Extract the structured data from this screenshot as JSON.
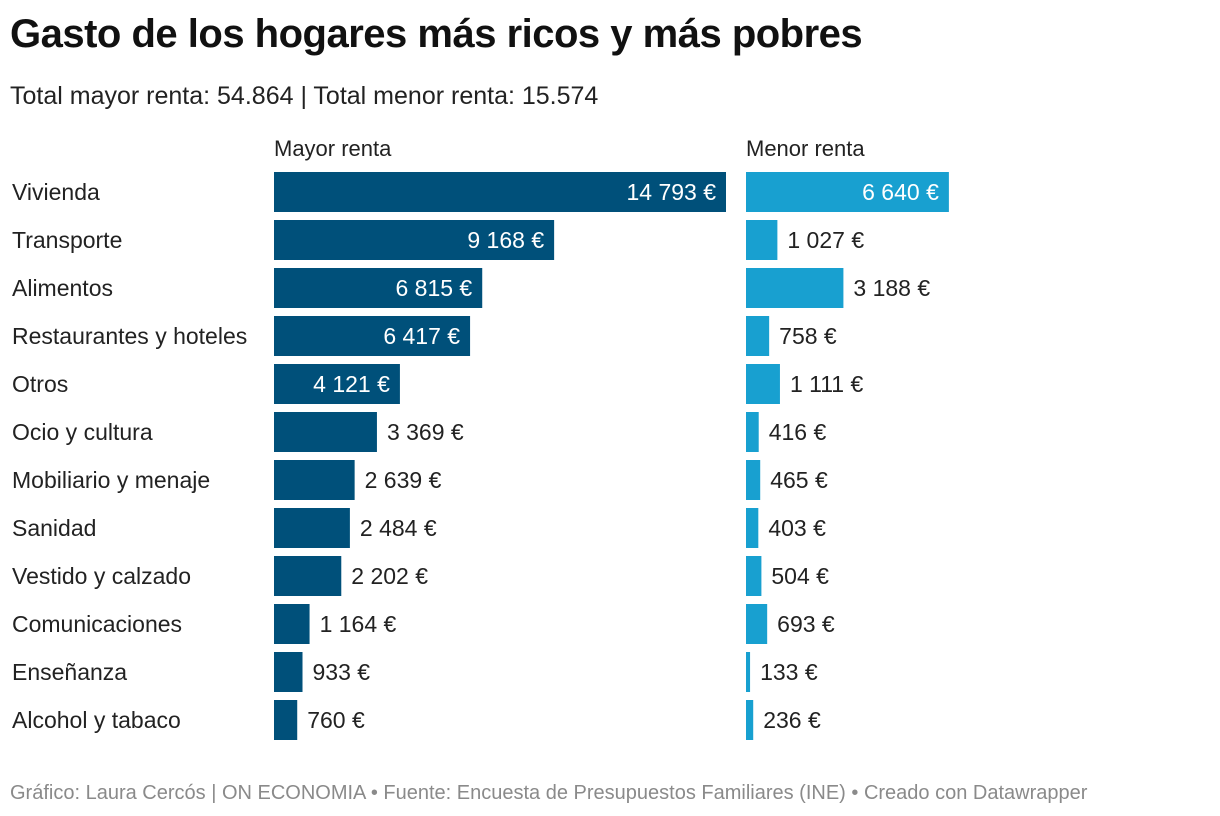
{
  "header": {
    "title": "Gasto de los hogares más ricos y más pobres",
    "subtitle": "Total mayor renta: 54.864 | Total menor renta: 15.574"
  },
  "footer": {
    "credits": "Gráfico: Laura Cercós | ON ECONOMIA • Fuente: Encuesta de Presupuestos Familiares (INE) • Creado con Datawrapper"
  },
  "colors": {
    "mayor": "#00507a",
    "menor": "#18a0d0"
  },
  "chart_data": {
    "type": "bar",
    "orientation": "horizontal",
    "unit": "€",
    "categories": [
      "Vivienda",
      "Transporte",
      "Alimentos",
      "Restaurantes y hoteles",
      "Otros",
      "Ocio y cultura",
      "Mobiliario y menaje",
      "Sanidad",
      "Vestido y calzado",
      "Comunicaciones",
      "Enseñanza",
      "Alcohol y tabaco"
    ],
    "series": [
      {
        "name": "Mayor renta",
        "values": [
          14793,
          9168,
          6815,
          6417,
          4121,
          3369,
          2639,
          2484,
          2202,
          1164,
          933,
          760
        ],
        "labels": [
          "14 793 €",
          "9 168 €",
          "6 815 €",
          "6 417 €",
          "4 121 €",
          "3 369 €",
          "2 639 €",
          "2 484 €",
          "2 202 €",
          "1 164 €",
          "933 €",
          "760 €"
        ]
      },
      {
        "name": "Menor renta",
        "values": [
          6640,
          1027,
          3188,
          758,
          1111,
          416,
          465,
          403,
          504,
          693,
          133,
          236
        ],
        "labels": [
          "6 640 €",
          "1 027 €",
          "3 188 €",
          "758 €",
          "1 111 €",
          "416 €",
          "465 €",
          "403 €",
          "504 €",
          "693 €",
          "133 €",
          "236 €"
        ]
      }
    ],
    "xlim": [
      0,
      14793
    ],
    "grid": false,
    "legend": "column headers"
  }
}
